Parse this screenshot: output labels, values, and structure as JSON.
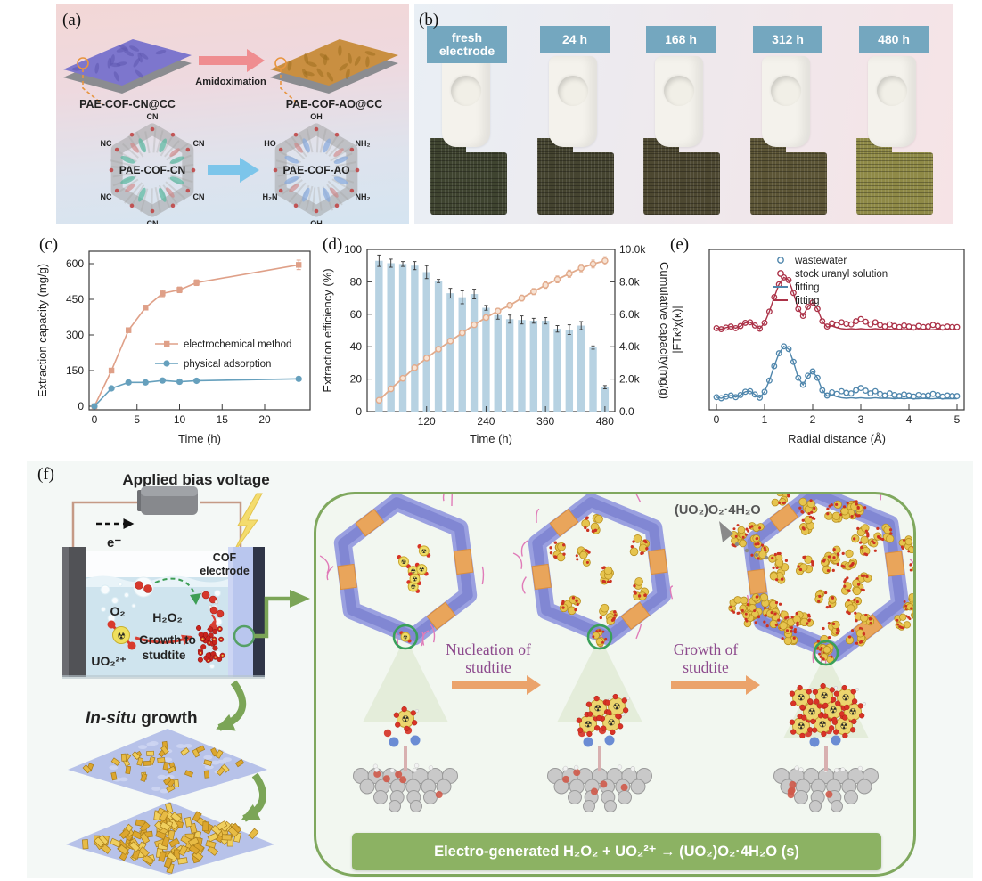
{
  "a": {
    "label": "(a)",
    "film_cn_label": "PAE-COF-CN@CC",
    "film_ao_label": "PAE-COF-AO@CC",
    "arrow_label": "Amidoximation",
    "core_cn_label": "PAE-COF-CN",
    "core_ao_label": "PAE-COF-AO",
    "cn_groups": [
      "CN",
      "CN",
      "NC",
      "CN",
      "NC",
      "CN"
    ],
    "ao_groups": [
      "OH",
      "NH₂",
      "HO",
      "NH₂",
      "H₂N",
      "OH"
    ]
  },
  "b": {
    "label": "(b)",
    "samples": [
      "fresh electrode",
      "24 h",
      "168 h",
      "312 h",
      "480 h"
    ],
    "cloth_colors": [
      "#3f4430",
      "#454430",
      "#4d4831",
      "#5c5536",
      "#8f8a47"
    ],
    "tag_color": "#74a7bf"
  },
  "c": {
    "label": "(c)"
  },
  "d": {
    "label": "(d)"
  },
  "e": {
    "label": "(e)"
  },
  "f": {
    "label": "(f)",
    "applied_bias": "Applied bias voltage",
    "electron": "e⁻",
    "o2": "O₂",
    "h2o2": "H₂O₂",
    "uo2": "UO₂²⁺",
    "growth_to_line1": "Growth to",
    "growth_to_line2": "studtite",
    "cof_line1": "COF",
    "cof_line2": "electrode",
    "insitu_italic": "In-situ",
    "insitu_rest": " growth",
    "nucleation_line1": "Nucleation of",
    "nucleation_line2": "studtite",
    "growth_line1": "Growth of",
    "growth_line2": "studtite",
    "studtite_formula": "(UO₂)O₂·4H₂O",
    "equation": "Electro-generated H₂O₂ + UO₂²⁺ →  (UO₂)O₂·4H₂O (s)"
  },
  "chart_data": [
    {
      "id": "c",
      "type": "line",
      "xlabel": "Time (h)",
      "ylabel": "Extraction capacity (mg/g)",
      "xlim": [
        0,
        24
      ],
      "ylim": [
        0,
        600
      ],
      "xticks": [
        0,
        5,
        10,
        15,
        20
      ],
      "yticks": [
        0,
        150,
        300,
        450,
        600
      ],
      "x": [
        0,
        2,
        4,
        6,
        8,
        10,
        12,
        24
      ],
      "series": [
        {
          "name": "electrochemical method",
          "marker": "square",
          "color": "#dfa088",
          "values": [
            0,
            150,
            320,
            415,
            475,
            490,
            520,
            595
          ],
          "errors": [
            0,
            8,
            10,
            10,
            14,
            12,
            12,
            20
          ]
        },
        {
          "name": "physical adsorption",
          "marker": "circle",
          "color": "#66a0bd",
          "values": [
            0,
            75,
            100,
            100,
            108,
            103,
            107,
            115
          ],
          "errors": [
            0,
            4,
            5,
            5,
            6,
            5,
            5,
            7
          ]
        }
      ],
      "legend_position": "middle-right",
      "grid": false
    },
    {
      "id": "d",
      "type": "bar-line",
      "xlabel": "Time (h)",
      "ylabel_left": "Extraction efficiency (%)",
      "ylabel_right": "Cumulative capacity(mg/g)",
      "xticks": [
        120,
        240,
        360,
        480
      ],
      "yticks_left": [
        0,
        20,
        40,
        60,
        80,
        100
      ],
      "yticks_right_labels": [
        "0.0",
        "2.0k",
        "4.0k",
        "6.0k",
        "8.0k",
        "10.0k"
      ],
      "ylim_left": [
        0,
        100
      ],
      "ylim_right": [
        0,
        10000
      ],
      "x": [
        24,
        48,
        72,
        96,
        120,
        144,
        168,
        192,
        216,
        240,
        264,
        288,
        312,
        336,
        360,
        384,
        408,
        432,
        456,
        480
      ],
      "bars_efficiency_pct": [
        93,
        91.5,
        91,
        90,
        86,
        80.5,
        73,
        70.5,
        72.5,
        64,
        59.5,
        57,
        56.5,
        56,
        56,
        51,
        50.5,
        53,
        39.5,
        15
      ],
      "bar_errors": [
        3.5,
        2.5,
        1.5,
        2.5,
        4,
        1,
        3,
        4,
        3,
        1.5,
        2.5,
        2.5,
        2.5,
        1.5,
        2,
        2,
        3,
        2.5,
        1,
        1
      ],
      "line_cumulative_mg_g": [
        700,
        1400,
        2050,
        2700,
        3300,
        3850,
        4350,
        4850,
        5350,
        5800,
        6200,
        6550,
        7000,
        7400,
        7800,
        8150,
        8500,
        8850,
        9100,
        9300
      ],
      "line_errors": [
        80,
        90,
        100,
        110,
        120,
        130,
        140,
        150,
        150,
        160,
        160,
        170,
        180,
        190,
        200,
        210,
        220,
        230,
        240,
        250
      ],
      "bar_color": "#b7d2e2",
      "line_color": "#e2ab8c",
      "grid": false
    },
    {
      "id": "e",
      "type": "line",
      "xlabel": "Radial distance (Å)",
      "ylabel": "|FTκ³χ(κ)|",
      "xlim": [
        0,
        5
      ],
      "xticks": [
        0,
        1,
        2,
        3,
        4,
        5
      ],
      "x_start": 0,
      "x_step": 0.1,
      "profile": [
        0.04,
        0.02,
        0.05,
        0.07,
        0.04,
        0.08,
        0.14,
        0.15,
        0.09,
        0.03,
        0.14,
        0.35,
        0.62,
        0.86,
        0.99,
        0.94,
        0.7,
        0.4,
        0.27,
        0.44,
        0.52,
        0.4,
        0.17,
        0.07,
        0.13,
        0.1,
        0.15,
        0.12,
        0.11,
        0.17,
        0.21,
        0.16,
        0.11,
        0.15,
        0.1,
        0.07,
        0.11,
        0.08,
        0.06,
        0.09,
        0.07,
        0.05,
        0.08,
        0.06,
        0.07,
        0.1,
        0.08,
        0.05,
        0.07,
        0.06,
        0.06
      ],
      "fit_profile": [
        0.04,
        0.02,
        0.05,
        0.07,
        0.04,
        0.08,
        0.14,
        0.15,
        0.09,
        0.03,
        0.14,
        0.35,
        0.62,
        0.86,
        0.99,
        0.94,
        0.7,
        0.4,
        0.27,
        0.44,
        0.52,
        0.4,
        0.17,
        0.06,
        0.08,
        0.05,
        0.03,
        0.02,
        0.03,
        0.02,
        0.03,
        0.02,
        0.02,
        0.03,
        0.02,
        0.02,
        0.02,
        0.01,
        0.02,
        0.01,
        0.02,
        0.01,
        0.01,
        0.02,
        0.01,
        0.01,
        0.02,
        0.01,
        0.01,
        0.01,
        0.01
      ],
      "series": [
        {
          "name": "wastewater",
          "color": "#4f86ac",
          "offset": 0.13
        },
        {
          "name": "stock uranyl solution",
          "color": "#ab3147",
          "offset": 1.42
        }
      ],
      "legend": [
        {
          "label": "wastewater",
          "type": "marker",
          "color": "#4f86ac"
        },
        {
          "label": "stock uranyl solution",
          "type": "marker",
          "color": "#ab3147"
        },
        {
          "label": "fitting",
          "type": "line",
          "color": "#4f86ac"
        },
        {
          "label": "fitting",
          "type": "line",
          "color": "#ab3147"
        }
      ],
      "grid": false
    }
  ]
}
